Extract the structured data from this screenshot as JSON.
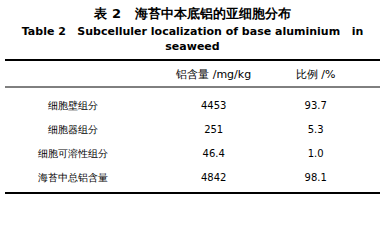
{
  "chart_data": {
    "type": "table",
    "title": "表 2   海苔中本底铝的亚细胞分布",
    "subtitle": [
      "Table 2   Subcelluler localization of base aluminium   in",
      "seaweed"
    ],
    "categories": [
      "细胞壁组分",
      "细胞器组分",
      "细胞可溶性组分",
      "海苔中总铝含量"
    ],
    "series": [
      {
        "name": "铝含量 /mg/kg",
        "values": [
          4453,
          251,
          46.4,
          4842
        ],
        "value_labels": [
          "4453",
          "251",
          "46.4",
          "4842"
        ]
      },
      {
        "name": "比例 /%",
        "values": [
          93.7,
          5.3,
          1.0,
          98.1
        ],
        "value_labels": [
          "93.7",
          "5.3",
          "1.0",
          "98.1"
        ]
      }
    ],
    "data_labels": true
  }
}
